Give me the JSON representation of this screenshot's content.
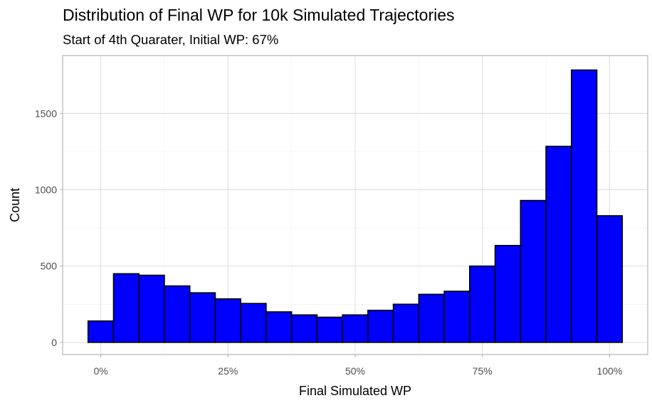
{
  "chart_data": {
    "type": "bar",
    "title": "Distribution of Final WP for 10k Simulated Trajectories",
    "subtitle": "Start of 4th Quarater, Initial WP: 67%",
    "xlabel": "Final Simulated WP",
    "ylabel": "Count",
    "xlim": [
      -0.075,
      1.075
    ],
    "ylim": [
      -80,
      1880
    ],
    "x_ticks": [
      {
        "value": 0,
        "label": "0%"
      },
      {
        "value": 0.25,
        "label": "25%"
      },
      {
        "value": 0.5,
        "label": "50%"
      },
      {
        "value": 0.75,
        "label": "75%"
      },
      {
        "value": 1,
        "label": "100%"
      }
    ],
    "y_ticks": [
      {
        "value": 0,
        "label": "0"
      },
      {
        "value": 500,
        "label": "500"
      },
      {
        "value": 1000,
        "label": "1000"
      },
      {
        "value": 1500,
        "label": "1500"
      }
    ],
    "bin_width": 0.05,
    "bin_centers": [
      0,
      0.05,
      0.1,
      0.15,
      0.2,
      0.25,
      0.3,
      0.35,
      0.4,
      0.45,
      0.5,
      0.55,
      0.6,
      0.65,
      0.7,
      0.75,
      0.8,
      0.85,
      0.9,
      0.95,
      1.0
    ],
    "values": [
      140,
      450,
      440,
      370,
      325,
      285,
      255,
      200,
      180,
      165,
      180,
      210,
      250,
      315,
      335,
      500,
      635,
      930,
      1285,
      1785,
      830
    ],
    "grid": true,
    "fill_color": "#0000ff",
    "edge_color": "#000000"
  }
}
